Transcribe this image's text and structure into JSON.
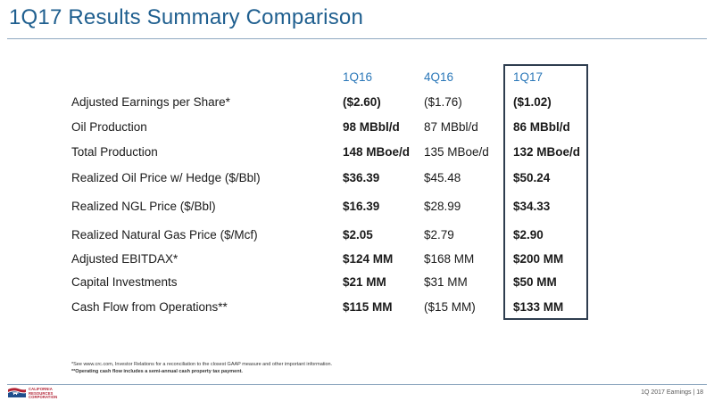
{
  "title": "1Q17 Results Summary Comparison",
  "table": {
    "columns": [
      "1Q16",
      "4Q16",
      "1Q17"
    ],
    "rows": [
      {
        "label": "Adjusted Earnings per Share*",
        "values": [
          "($2.60)",
          "($1.76)",
          "($1.02)"
        ]
      },
      {
        "label": "Oil Production",
        "values": [
          "98 MBbl/d",
          "87 MBbl/d",
          "86 MBbl/d"
        ]
      },
      {
        "label": "Total Production",
        "values": [
          "148 MBoe/d",
          "135 MBoe/d",
          "132 MBoe/d"
        ]
      },
      {
        "label": "Realized Oil Price w/ Hedge ($/Bbl)",
        "values": [
          "$36.39",
          "$45.48",
          "$50.24"
        ]
      },
      {
        "label": "Realized NGL Price ($/Bbl)",
        "values": [
          "$16.39",
          "$28.99",
          "$34.33"
        ]
      },
      {
        "label": "Realized Natural Gas Price ($/Mcf)",
        "values": [
          "$2.05",
          "$2.79",
          "$2.90"
        ]
      },
      {
        "label": "Adjusted EBITDAX*",
        "values": [
          "$124 MM",
          "$168 MM",
          "$200 MM"
        ]
      },
      {
        "label": "Capital Investments",
        "values": [
          "$21 MM",
          "$31 MM",
          "$50 MM"
        ]
      },
      {
        "label": "Cash Flow from Operations**",
        "values": [
          "$115 MM",
          "($15 MM)",
          "$133 MM"
        ]
      }
    ]
  },
  "footnotes": {
    "note1": "*See www.crc.com, Investor Relations for a reconciliation to the closest GAAP measure and other important information.",
    "note2": "**Operating cash flow includes a semi-annual cash property tax payment."
  },
  "logo": {
    "line1": "CALIFORNIA",
    "line2": "RESOURCES",
    "line3": "CORPORATION"
  },
  "footer": "1Q 2017 Earnings | 18",
  "colors": {
    "title": "#1f5f8f",
    "header": "#2b78b9",
    "logo_red": "#b22234",
    "logo_blue": "#1f4e8c"
  }
}
